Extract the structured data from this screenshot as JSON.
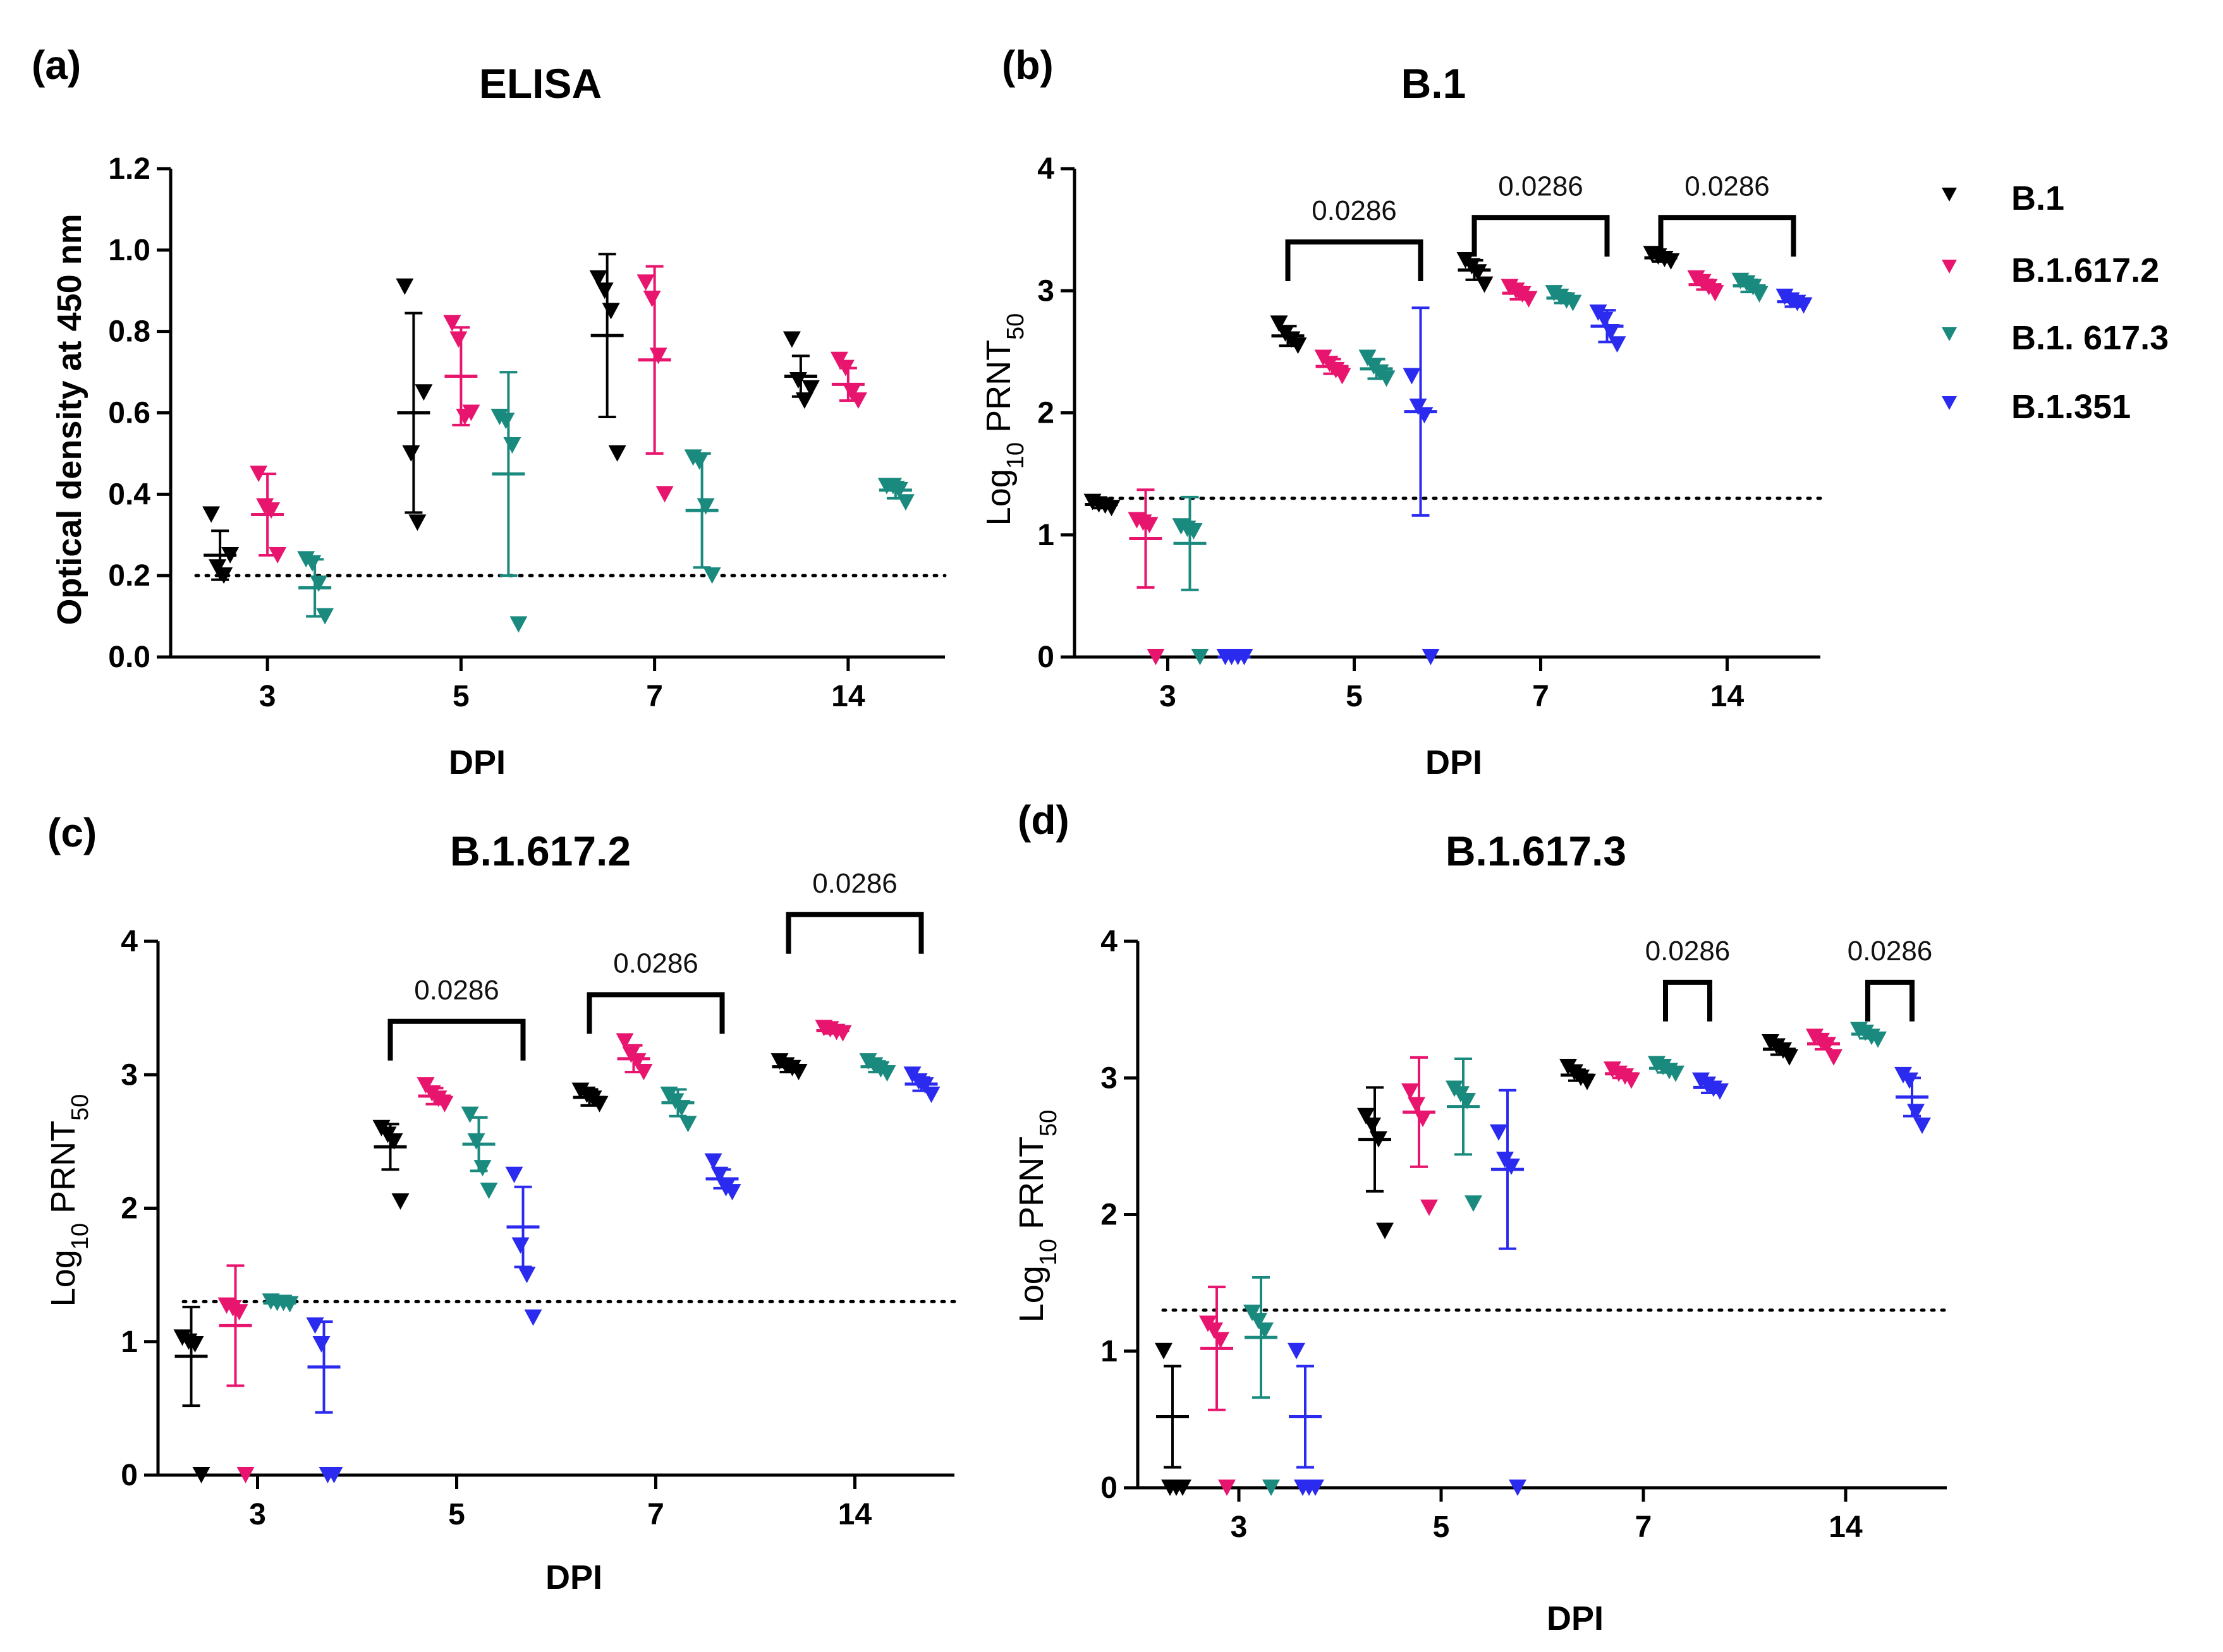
{
  "legend": {
    "title": "",
    "position": "right",
    "entries": [
      {
        "label": "B.1",
        "color": "#000000"
      },
      {
        "label": "B.1.617.2",
        "color": "#e8156f"
      },
      {
        "label": "B.1. 617.3",
        "color": "#1a8a7f"
      },
      {
        "label": "B.1.351",
        "color": "#2b2bf0"
      }
    ]
  },
  "chart_data": [
    {
      "panel": "(a)",
      "type": "scatter",
      "title": "ELISA",
      "xlabel": "DPI",
      "ylabel": "Optical density at 450 nm",
      "ylim": [
        0,
        1.2
      ],
      "yticks": [
        "0.0",
        "0.2",
        "0.4",
        "0.6",
        "0.8",
        "1.0",
        "1.2"
      ],
      "categories": [
        "3",
        "5",
        "7",
        "14"
      ],
      "threshold": 0.2,
      "series": [
        {
          "name": "B.1",
          "mean": [
            0.25,
            0.6,
            0.79,
            0.69
          ],
          "sd": [
            0.06,
            0.245,
            0.2,
            0.05
          ],
          "points": [
            [
              0.35,
              0.22,
              0.2,
              0.25
            ],
            [
              0.91,
              0.5,
              0.33,
              0.65
            ],
            [
              0.93,
              0.9,
              0.85,
              0.5
            ],
            [
              0.78,
              0.68,
              0.63,
              0.66
            ]
          ]
        },
        {
          "name": "B.1.617.2",
          "mean": [
            0.35,
            0.69,
            0.73,
            0.67
          ],
          "sd": [
            0.1,
            0.12,
            0.23,
            0.04
          ],
          "points": [
            [
              0.45,
              0.37,
              0.36,
              0.25
            ],
            [
              0.82,
              0.78,
              0.59,
              0.6
            ],
            [
              0.92,
              0.88,
              0.74,
              0.4
            ],
            [
              0.73,
              0.71,
              0.65,
              0.63
            ]
          ]
        },
        {
          "name": "B.1. 617.3",
          "mean": [
            0.17,
            0.45,
            0.36,
            0.41
          ],
          "sd": [
            0.07,
            0.25,
            0.14,
            0.02
          ],
          "points": [
            [
              0.24,
              0.23,
              0.18,
              0.1
            ],
            [
              0.59,
              0.58,
              0.52,
              0.08
            ],
            [
              0.49,
              0.48,
              0.37,
              0.2
            ],
            [
              0.42,
              0.42,
              0.41,
              0.38
            ]
          ]
        }
      ],
      "significance": []
    },
    {
      "panel": "(b)",
      "type": "scatter",
      "title": "B.1",
      "xlabel": "DPI",
      "ylabel_prefix": "Log",
      "ylabel_sub1": "10",
      "ylabel_mid": " PRNT",
      "ylabel_sub2": "50",
      "ylim": [
        0,
        4
      ],
      "yticks": [
        "0",
        "1",
        "2",
        "3",
        "4"
      ],
      "categories": [
        "3",
        "5",
        "7",
        "14"
      ],
      "threshold": 1.3,
      "series": [
        {
          "name": "B.1",
          "mean": [
            1.25,
            2.63,
            3.17,
            3.27
          ],
          "sd": [
            0.03,
            0.08,
            0.08,
            0.03
          ],
          "points": [
            [
              1.27,
              1.25,
              1.24,
              1.22
            ],
            [
              2.73,
              2.65,
              2.6,
              2.55
            ],
            [
              3.25,
              3.2,
              3.15,
              3.05
            ],
            [
              3.3,
              3.28,
              3.26,
              3.24
            ]
          ]
        },
        {
          "name": "B.1.617.2",
          "mean": [
            0.97,
            2.38,
            2.98,
            3.05
          ],
          "sd": [
            0.4,
            0.06,
            0.05,
            0.04
          ],
          "points": [
            [
              1.12,
              1.1,
              1.08,
              0.0
            ],
            [
              2.45,
              2.4,
              2.35,
              2.3
            ],
            [
              3.03,
              3.0,
              2.97,
              2.93
            ],
            [
              3.1,
              3.07,
              3.03,
              2.98
            ]
          ]
        },
        {
          "name": "B.1. 617.3",
          "mean": [
            0.93,
            2.36,
            2.94,
            3.04
          ],
          "sd": [
            0.38,
            0.08,
            0.04,
            0.05
          ],
          "points": [
            [
              1.07,
              1.05,
              1.03,
              0.0
            ],
            [
              2.45,
              2.38,
              2.33,
              2.28
            ],
            [
              2.98,
              2.95,
              2.92,
              2.9
            ],
            [
              3.08,
              3.06,
              3.03,
              2.97
            ]
          ]
        },
        {
          "name": "B.1.351",
          "mean": [
            0.0,
            2.01,
            2.71,
            2.91
          ],
          "sd": [
            0.0,
            0.85,
            0.13,
            0.04
          ],
          "points": [
            [
              0.0,
              0.0,
              0.0,
              0.0
            ],
            [
              2.3,
              2.05,
              1.98,
              0.0
            ],
            [
              2.82,
              2.76,
              2.66,
              2.56
            ],
            [
              2.95,
              2.92,
              2.9,
              2.88
            ]
          ]
        }
      ],
      "significance": [
        {
          "group": "5",
          "from": 0,
          "to": 3,
          "y": 3.4,
          "label": "0.0286"
        },
        {
          "group": "7",
          "from": 0,
          "to": 3,
          "y": 3.6,
          "label": "0.0286"
        },
        {
          "group": "14",
          "from": 0,
          "to": 3,
          "y": 3.6,
          "label": "0.0286"
        }
      ]
    },
    {
      "panel": "(c)",
      "type": "scatter",
      "title": "B.1.617.2",
      "xlabel": "DPI",
      "ylabel_prefix": "Log",
      "ylabel_sub1": "10",
      "ylabel_mid": " PRNT",
      "ylabel_sub2": "50",
      "ylim": [
        0,
        4
      ],
      "yticks": [
        "0",
        "1",
        "2",
        "3",
        "4"
      ],
      "categories": [
        "3",
        "5",
        "7",
        "14"
      ],
      "threshold": 1.3,
      "series": [
        {
          "name": "B.1",
          "mean": [
            0.89,
            2.46,
            2.83,
            3.06
          ],
          "sd": [
            0.37,
            0.17,
            0.06,
            0.04
          ],
          "points": [
            [
              1.03,
              1.0,
              0.98,
              0.0
            ],
            [
              2.6,
              2.55,
              2.5,
              2.05
            ],
            [
              2.88,
              2.85,
              2.82,
              2.78
            ],
            [
              3.1,
              3.07,
              3.05,
              3.02
            ]
          ]
        },
        {
          "name": "B.1.617.2",
          "mean": [
            1.12,
            2.84,
            3.12,
            3.33
          ],
          "sd": [
            0.45,
            0.06,
            0.1,
            0.02
          ],
          "points": [
            [
              1.27,
              1.25,
              1.22,
              0.0
            ],
            [
              2.92,
              2.86,
              2.82,
              2.78
            ],
            [
              3.25,
              3.15,
              3.1,
              3.02
            ],
            [
              3.35,
              3.34,
              3.32,
              3.31
            ]
          ]
        },
        {
          "name": "B.1. 617.3",
          "mean": [
            1.29,
            2.48,
            2.79,
            3.06
          ],
          "sd": [
            0.01,
            0.2,
            0.1,
            0.04
          ],
          "points": [
            [
              1.3,
              1.29,
              1.29,
              1.28
            ],
            [
              2.7,
              2.5,
              2.3,
              2.13
            ],
            [
              2.85,
              2.8,
              2.75,
              2.63
            ],
            [
              3.1,
              3.07,
              3.04,
              3.01
            ]
          ]
        },
        {
          "name": "B.1.351",
          "mean": [
            0.81,
            1.86,
            2.22,
            2.93
          ],
          "sd": [
            0.34,
            0.3,
            0.07,
            0.05
          ],
          "points": [
            [
              1.12,
              0.98,
              0.0,
              0.0
            ],
            [
              2.25,
              1.72,
              1.5,
              1.18
            ],
            [
              2.35,
              2.25,
              2.15,
              2.12
            ],
            [
              3.0,
              2.95,
              2.92,
              2.85
            ]
          ]
        }
      ],
      "significance": [
        {
          "group": "5",
          "from": 0,
          "to": 3,
          "y": 3.4,
          "label": "0.0286"
        },
        {
          "group": "7",
          "from": 0,
          "to": 3,
          "y": 3.6,
          "label": "0.0286"
        },
        {
          "group": "14",
          "from": 0,
          "to": 3,
          "y": 4.2,
          "label": "0.0286"
        }
      ]
    },
    {
      "panel": "(d)",
      "type": "scatter",
      "title": "B.1.617.3",
      "xlabel": "DPI",
      "ylabel_prefix": "Log",
      "ylabel_sub1": "10",
      "ylabel_mid": " PRNT",
      "ylabel_sub2": "50",
      "ylim": [
        0,
        4
      ],
      "yticks": [
        "0",
        "1",
        "2",
        "3",
        "4"
      ],
      "categories": [
        "3",
        "5",
        "7",
        "14"
      ],
      "threshold": 1.3,
      "series": [
        {
          "name": "B.1",
          "mean": [
            0.52,
            2.55,
            3.02,
            3.21
          ],
          "sd": [
            0.37,
            0.38,
            0.04,
            0.04
          ],
          "points": [
            [
              1.0,
              0.0,
              0.0,
              0.0
            ],
            [
              2.72,
              2.65,
              2.55,
              1.88
            ],
            [
              3.08,
              3.04,
              3.0,
              2.97
            ],
            [
              3.26,
              3.23,
              3.2,
              3.15
            ]
          ]
        },
        {
          "name": "B.1.617.2",
          "mean": [
            1.02,
            2.75,
            3.03,
            3.25
          ],
          "sd": [
            0.45,
            0.4,
            0.03,
            0.04
          ],
          "points": [
            [
              1.2,
              1.15,
              1.08,
              0.0
            ],
            [
              2.9,
              2.8,
              2.7,
              2.05
            ],
            [
              3.06,
              3.03,
              3.01,
              2.98
            ],
            [
              3.3,
              3.27,
              3.24,
              3.15
            ]
          ]
        },
        {
          "name": "B.1. 617.3",
          "mean": [
            1.1,
            2.79,
            3.07,
            3.32
          ],
          "sd": [
            0.44,
            0.35,
            0.03,
            0.03
          ],
          "points": [
            [
              1.28,
              1.22,
              1.15,
              0.0
            ],
            [
              2.92,
              2.88,
              2.83,
              2.08
            ],
            [
              3.1,
              3.08,
              3.05,
              3.03
            ],
            [
              3.35,
              3.33,
              3.3,
              3.28
            ]
          ]
        },
        {
          "name": "B.1.351",
          "mean": [
            0.52,
            2.33,
            2.93,
            2.86
          ],
          "sd": [
            0.37,
            0.58,
            0.04,
            0.14
          ],
          "points": [
            [
              1.0,
              0.0,
              0.0,
              0.0
            ],
            [
              2.6,
              2.4,
              2.35,
              0.0
            ],
            [
              2.98,
              2.95,
              2.92,
              2.9
            ],
            [
              3.02,
              2.98,
              2.75,
              2.65
            ]
          ]
        }
      ],
      "significance": [
        {
          "group": "7",
          "from": 2,
          "to": 3,
          "y": 3.7,
          "label": "0.0286"
        },
        {
          "group": "14",
          "from": 2,
          "to": 3,
          "y": 3.7,
          "label": "0.0286"
        }
      ]
    }
  ]
}
